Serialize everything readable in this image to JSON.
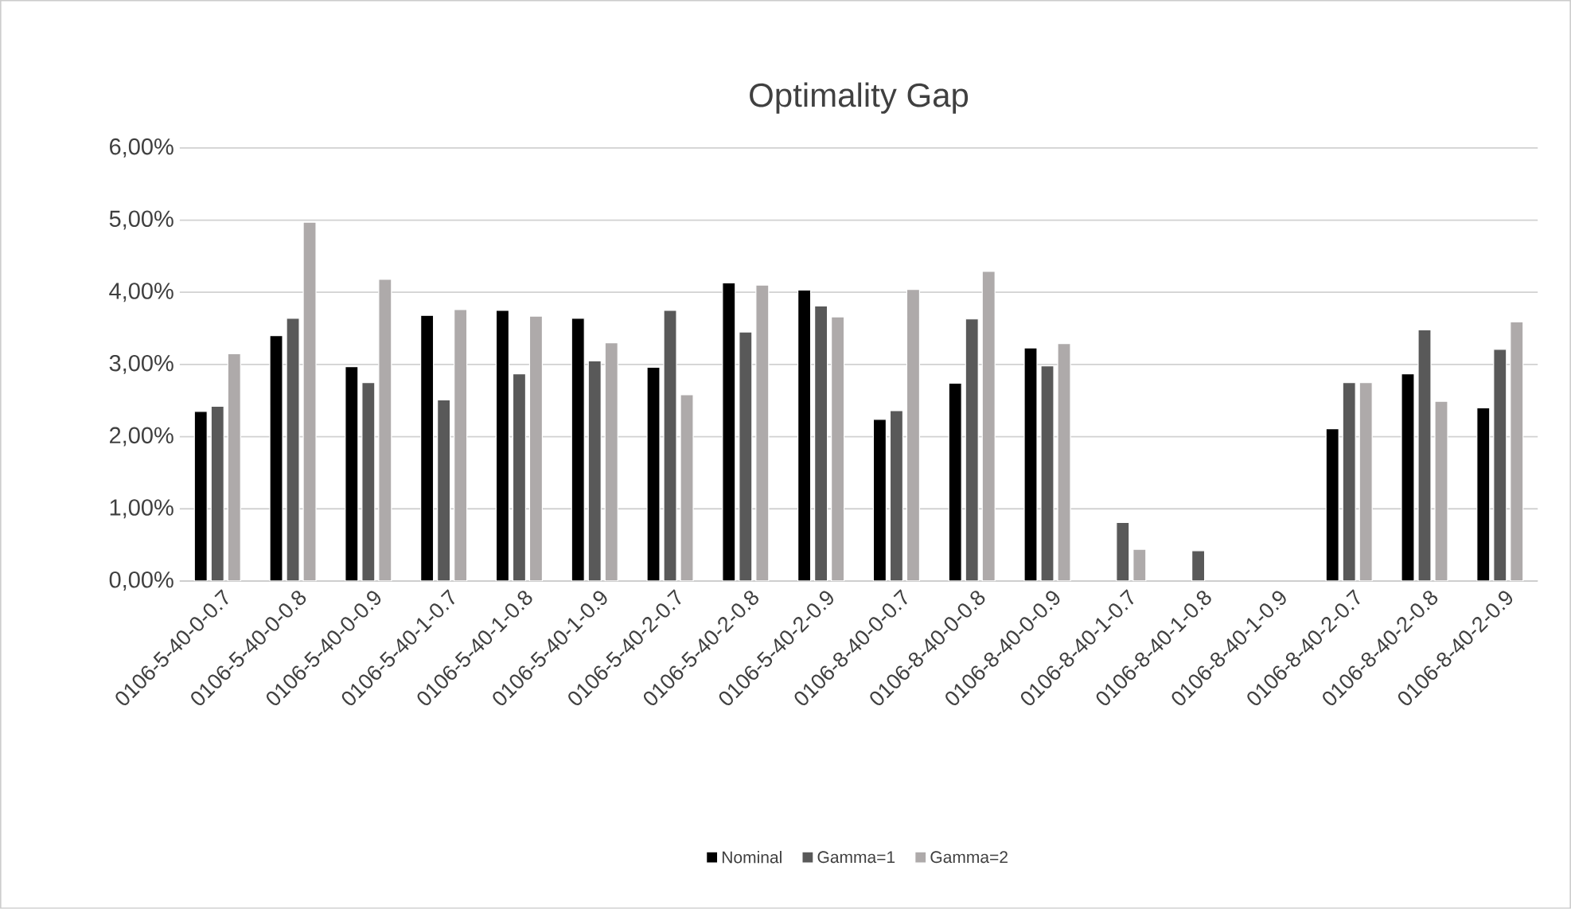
{
  "chart_data": {
    "type": "bar",
    "title": "Optimality Gap",
    "categories": [
      "0106-5-40-0-0.7",
      "0106-5-40-0-0.8",
      "0106-5-40-0-0.9",
      "0106-5-40-1-0.7",
      "0106-5-40-1-0.8",
      "0106-5-40-1-0.9",
      "0106-5-40-2-0.7",
      "0106-5-40-2-0.8",
      "0106-5-40-2-0.9",
      "0106-8-40-0-0.7",
      "0106-8-40-0-0.8",
      "0106-8-40-0-0.9",
      "0106-8-40-1-0.7",
      "0106-8-40-1-0.8",
      "0106-8-40-1-0.9",
      "0106-8-40-2-0.7",
      "0106-8-40-2-0.8",
      "0106-8-40-2-0.9"
    ],
    "series": [
      {
        "name": "Nominal",
        "color": "#000000",
        "values": [
          2.35,
          3.4,
          2.97,
          3.68,
          3.75,
          3.64,
          2.96,
          4.13,
          4.03,
          2.24,
          2.74,
          3.23,
          null,
          null,
          null,
          2.11,
          2.87,
          2.4
        ]
      },
      {
        "name": "Gamma=1",
        "color": "#595959",
        "values": [
          2.42,
          3.64,
          2.75,
          2.51,
          2.87,
          3.05,
          3.75,
          3.45,
          3.81,
          2.36,
          3.63,
          2.98,
          0.81,
          0.42,
          null,
          2.75,
          3.48,
          3.21
        ]
      },
      {
        "name": "Gamma=2",
        "color": "#aeaaaa",
        "values": [
          3.15,
          4.97,
          4.18,
          3.76,
          3.67,
          3.3,
          2.58,
          4.1,
          3.66,
          4.04,
          4.29,
          3.29,
          0.44,
          null,
          null,
          2.75,
          2.49,
          3.59
        ]
      }
    ],
    "ylim": [
      0,
      6
    ],
    "yticks": [
      {
        "value": 0,
        "label": "0,00%"
      },
      {
        "value": 1,
        "label": "1,00%"
      },
      {
        "value": 2,
        "label": "2,00%"
      },
      {
        "value": 3,
        "label": "3,00%"
      },
      {
        "value": 4,
        "label": "4,00%"
      },
      {
        "value": 5,
        "label": "5,00%"
      },
      {
        "value": 6,
        "label": "6,00%"
      }
    ],
    "grid": "y",
    "legend": "bottom"
  }
}
